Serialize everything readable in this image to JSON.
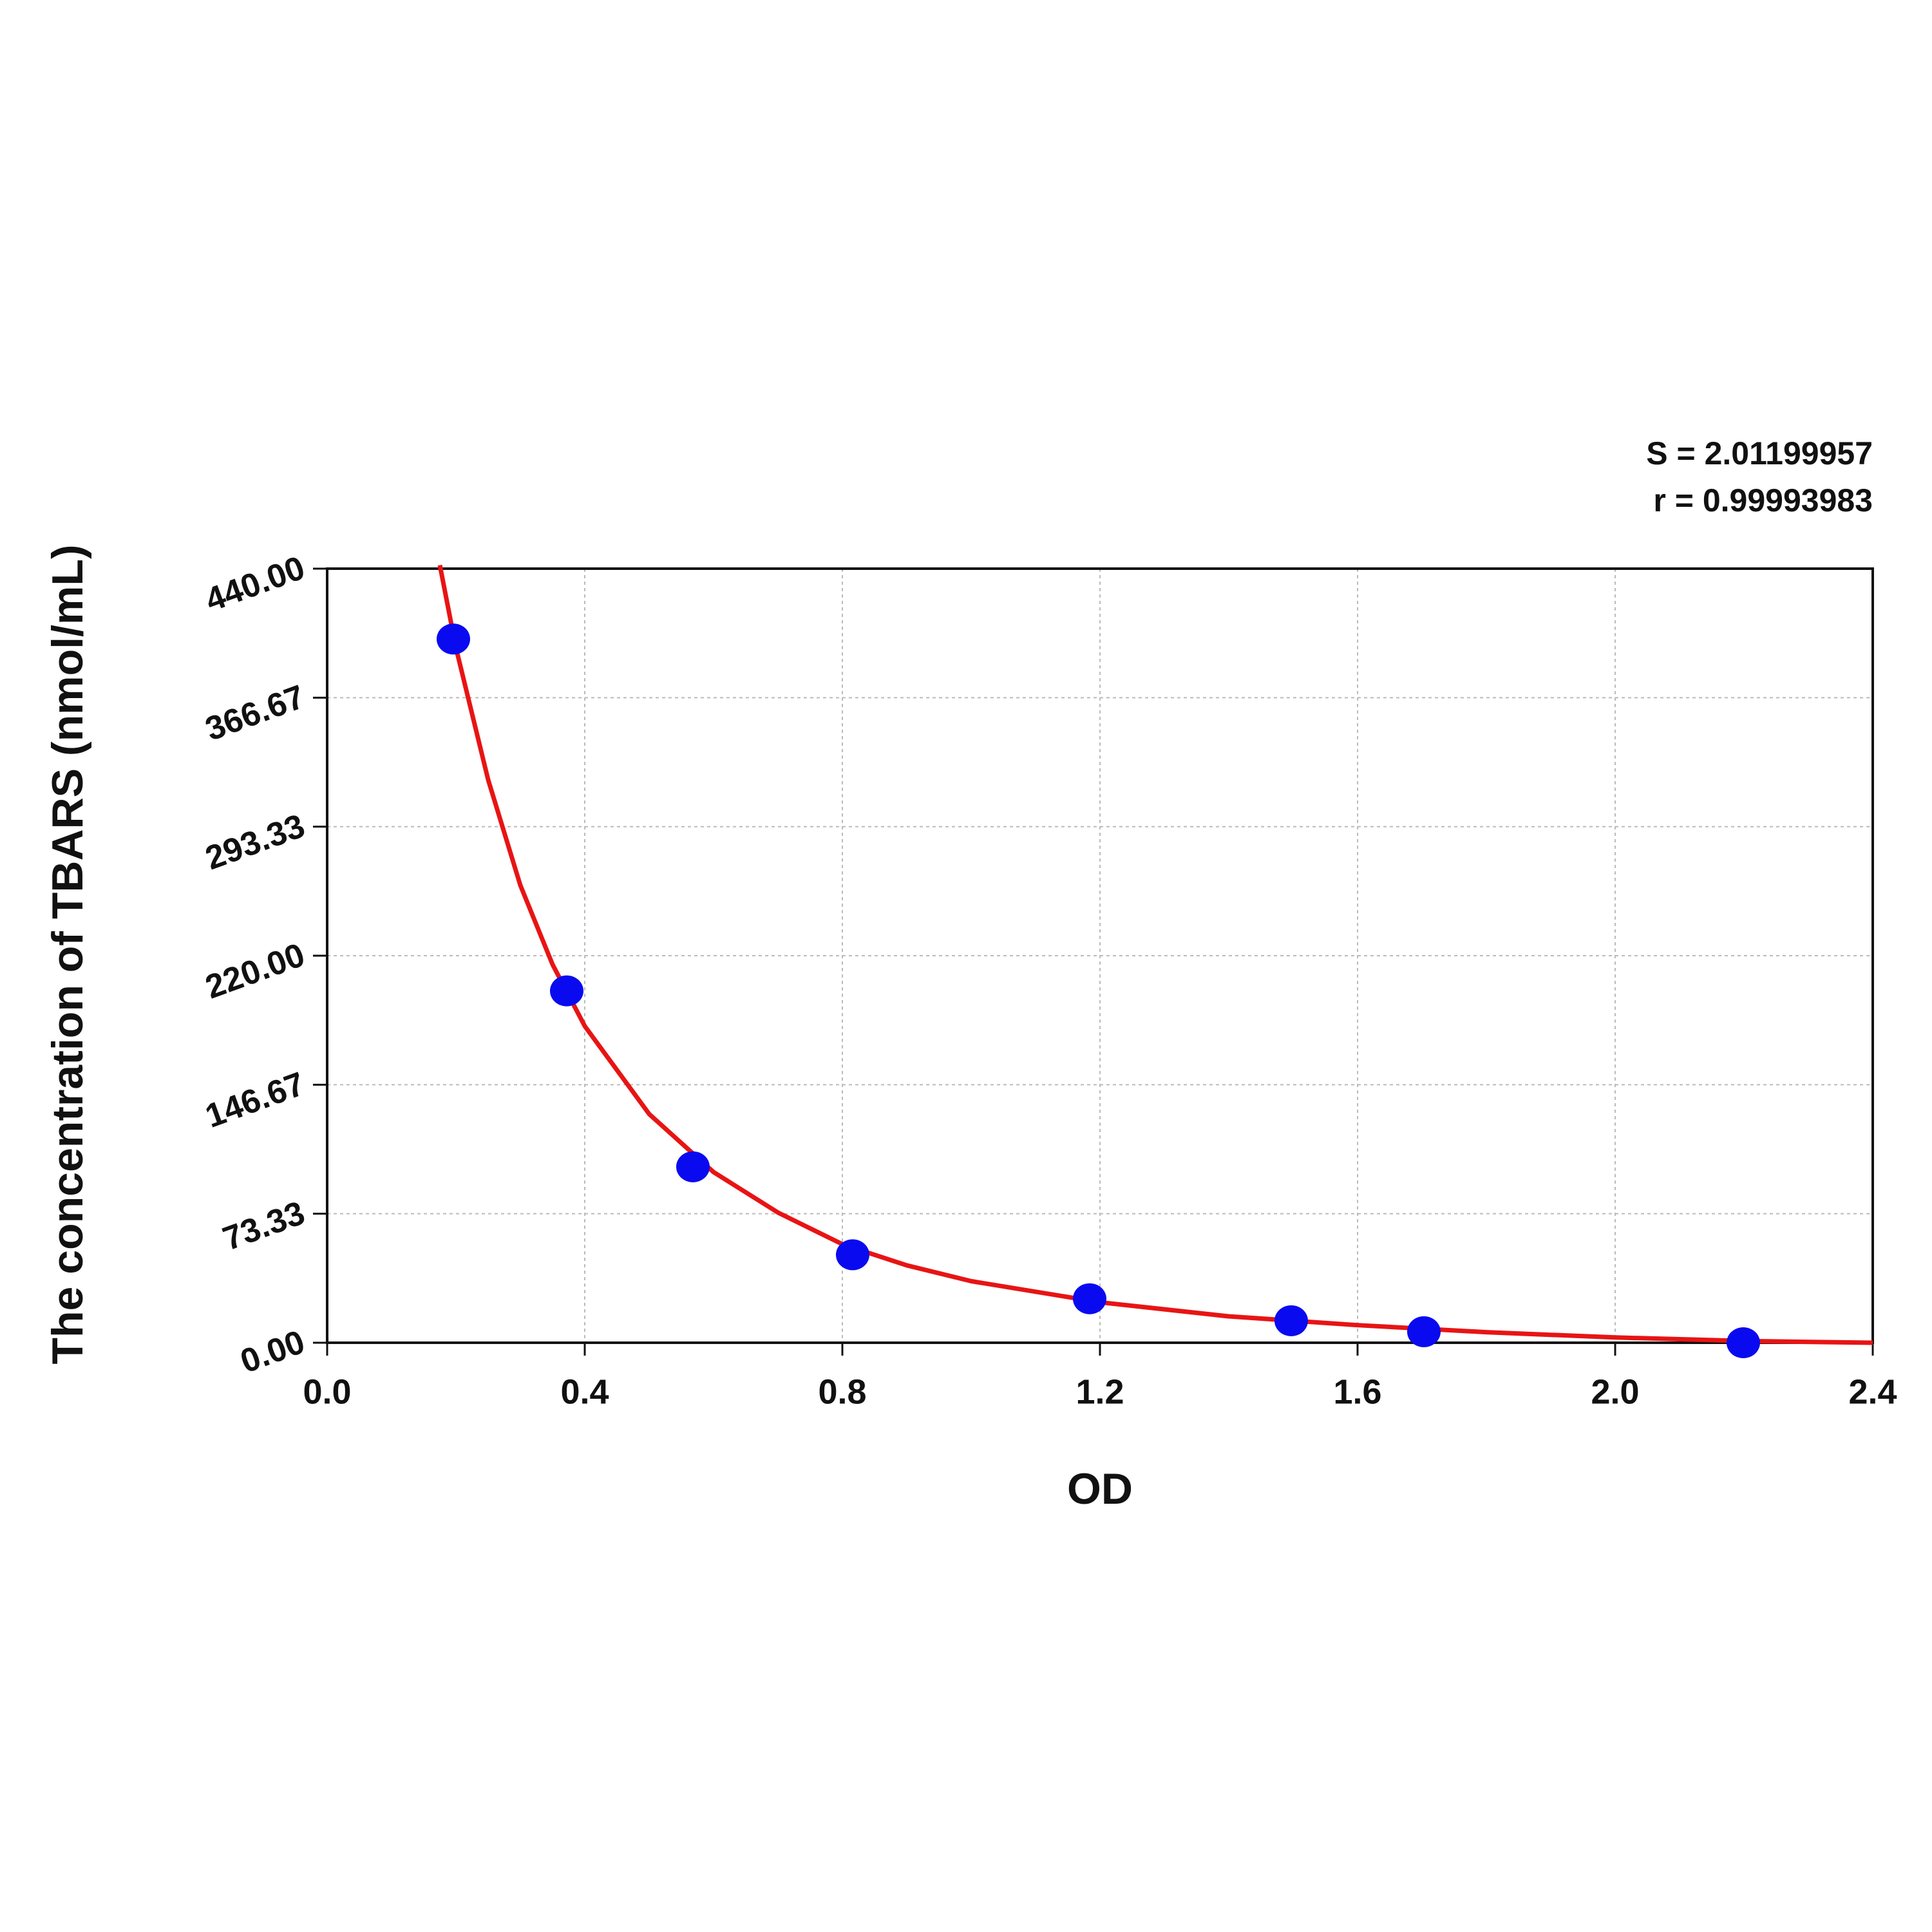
{
  "chart_data": {
    "type": "scatter",
    "xlabel": "OD",
    "ylabel": "The concentration of TBARS (nmol/mL)",
    "annotations": [
      "S = 2.01199957",
      "r = 0.99993983"
    ],
    "xlim": [
      0,
      2.4
    ],
    "xticks": [
      {
        "value": 0,
        "label": "0.0"
      },
      0.4,
      0.8,
      1.2,
      1.6,
      {
        "value": 2,
        "label": "2.0"
      },
      2.4
    ],
    "ylim": [
      0,
      440
    ],
    "yticks": [
      {
        "value": 0,
        "label": "0.00"
      },
      73.33,
      146.67,
      {
        "value": 220,
        "label": "220.00"
      },
      293.33,
      366.67,
      {
        "value": 440,
        "label": "440.00"
      }
    ],
    "grid": true,
    "series": [
      {
        "mode": "markers",
        "color": "#0a0af0",
        "x": [
          0.196,
          0.372,
          0.568,
          0.816,
          1.184,
          1.497,
          1.703,
          2.199
        ],
        "values": [
          400,
          200,
          100,
          50,
          25,
          12.5,
          6.25,
          0
        ]
      },
      {
        "mode": "line",
        "color": "#e81414",
        "x": [
          0.175,
          0.2,
          0.25,
          0.3,
          0.35,
          0.4,
          0.5,
          0.6,
          0.7,
          0.8,
          0.9,
          1.0,
          1.2,
          1.4,
          1.6,
          1.8,
          2.0,
          2.2,
          2.4
        ],
        "values": [
          442,
          395,
          320,
          260,
          215,
          180,
          130,
          97,
          74,
          56,
          44,
          35,
          23,
          15,
          10,
          6,
          3,
          1,
          0
        ]
      }
    ]
  }
}
